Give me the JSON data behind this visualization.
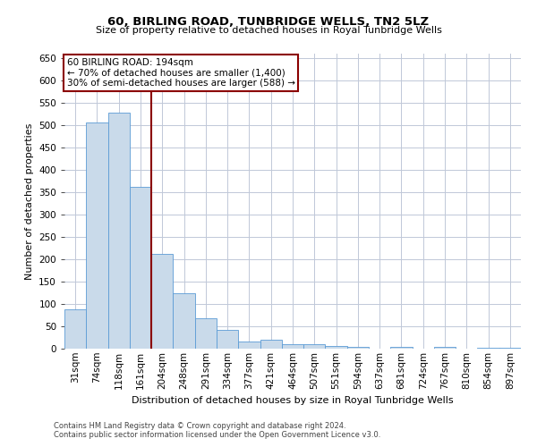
{
  "title_line1": "60, BIRLING ROAD, TUNBRIDGE WELLS, TN2 5LZ",
  "title_line2": "Size of property relative to detached houses in Royal Tunbridge Wells",
  "xlabel": "Distribution of detached houses by size in Royal Tunbridge Wells",
  "ylabel": "Number of detached properties",
  "categories": [
    "31sqm",
    "74sqm",
    "118sqm",
    "161sqm",
    "204sqm",
    "248sqm",
    "291sqm",
    "334sqm",
    "377sqm",
    "421sqm",
    "464sqm",
    "507sqm",
    "551sqm",
    "594sqm",
    "637sqm",
    "681sqm",
    "724sqm",
    "767sqm",
    "810sqm",
    "854sqm",
    "897sqm"
  ],
  "values": [
    88,
    507,
    528,
    363,
    213,
    125,
    68,
    42,
    16,
    20,
    11,
    11,
    6,
    5,
    1,
    5,
    0,
    4,
    0,
    3,
    3
  ],
  "bar_color": "#c9daea",
  "bar_edge_color": "#5b9bd5",
  "vline_x": 3.5,
  "vline_color": "#8b0000",
  "annotation_line1": "60 BIRLING ROAD: 194sqm",
  "annotation_line2": "← 70% of detached houses are smaller (1,400)",
  "annotation_line3": "30% of semi-detached houses are larger (588) →",
  "annotation_box_color": "#8b0000",
  "ylim": [
    0,
    660
  ],
  "yticks": [
    0,
    50,
    100,
    150,
    200,
    250,
    300,
    350,
    400,
    450,
    500,
    550,
    600,
    650
  ],
  "footer_line1": "Contains HM Land Registry data © Crown copyright and database right 2024.",
  "footer_line2": "Contains public sector information licensed under the Open Government Licence v3.0.",
  "bg_color": "#ffffff",
  "grid_color": "#c0c8d8",
  "title_fontsize": 9.5,
  "subtitle_fontsize": 8.0,
  "ylabel_fontsize": 8.0,
  "xlabel_fontsize": 8.0,
  "tick_fontsize": 7.5,
  "footer_fontsize": 6.0,
  "annot_fontsize": 7.5
}
